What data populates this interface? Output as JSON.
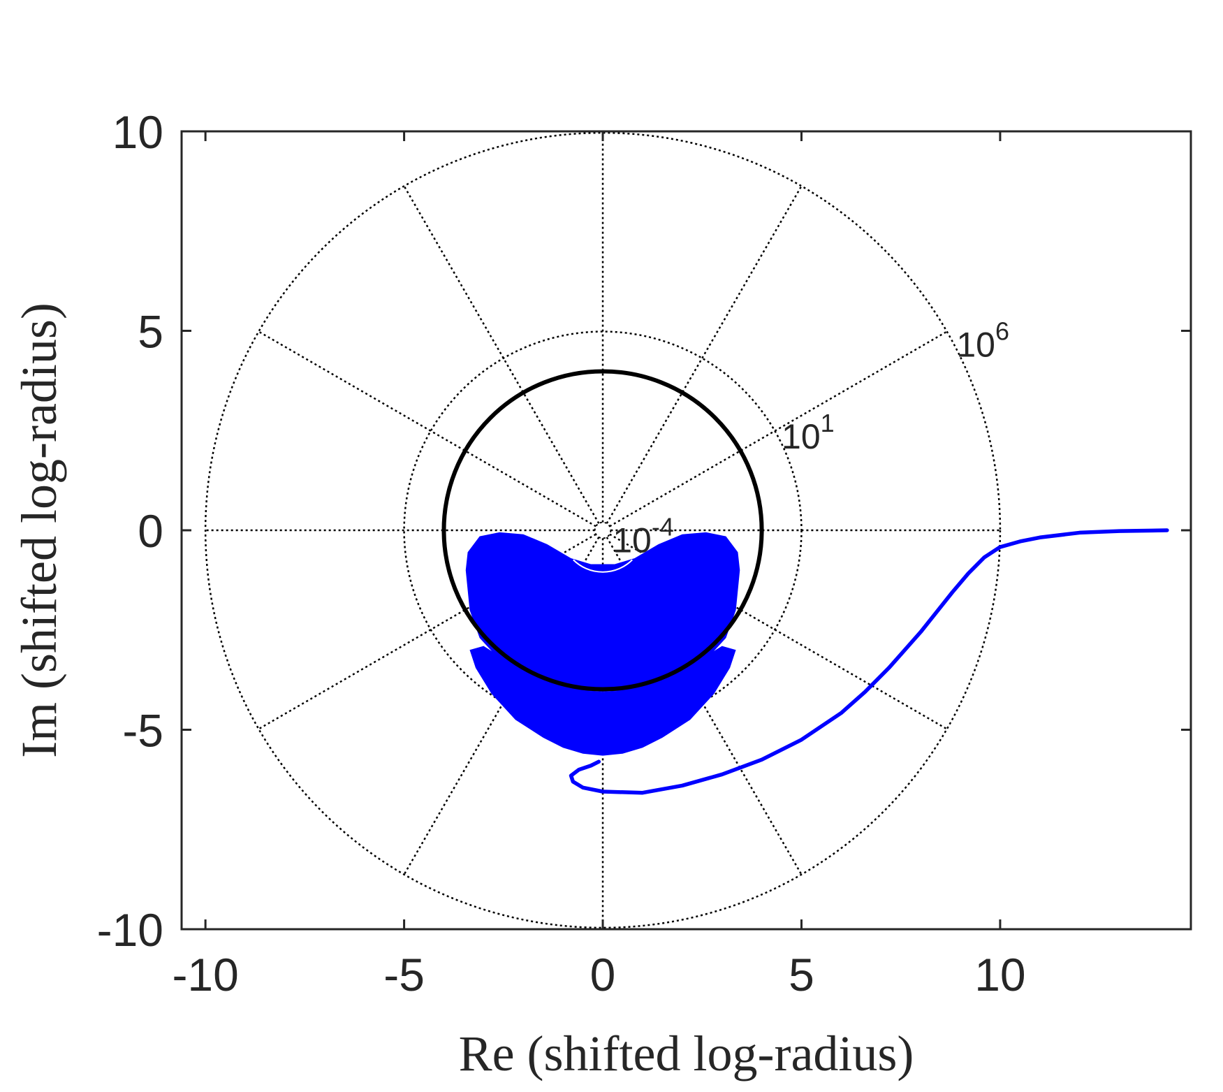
{
  "chart_data": {
    "type": "line",
    "xlabel": "Re (shifted log-radius)",
    "ylabel": "Im (shifted log-radius)",
    "xlim": [
      -10.6,
      14.8
    ],
    "ylim": [
      -10,
      10
    ],
    "xticks": [
      "-10",
      "-5",
      "0",
      "5",
      "10"
    ],
    "yticks": [
      "10",
      "5",
      "0",
      "-5",
      "-10"
    ],
    "xtick_values": [
      -10,
      -5,
      0,
      5,
      10
    ],
    "ytick_values": [
      10,
      5,
      0,
      -5,
      -10
    ],
    "grid": "polar log-radius grid (dotted)",
    "polar_rings": [
      {
        "radius": 0.2,
        "base": "",
        "exponent": ""
      },
      {
        "radius": 5,
        "base": "10",
        "exponent": "-4"
      },
      {
        "radius": 10,
        "base": "10",
        "exponent": "1"
      },
      {
        "radius": 0,
        "base": "10",
        "exponent": "6"
      }
    ],
    "ring_labels": [
      {
        "base": "10",
        "exponent": "-4",
        "x": 0.25,
        "y": -0.55
      },
      {
        "base": "10",
        "exponent": "1",
        "x": 4.5,
        "y": 2.05
      },
      {
        "base": "10",
        "exponent": "6",
        "x": 8.9,
        "y": 4.35
      }
    ],
    "spoke_angles_deg": [
      0,
      30,
      60,
      90,
      120,
      150,
      180,
      210,
      240,
      270,
      300,
      330
    ],
    "unit_circle": {
      "radius": 4,
      "color": "#000000"
    },
    "series": [
      {
        "color": "#0000ff",
        "x": [
          14.2,
          13,
          12,
          11,
          10.5,
          10,
          9.6,
          9.2,
          8.8,
          8.4,
          8.0,
          7.6,
          7.2,
          6.6,
          6.0,
          5.0,
          4.0,
          3.0,
          2.0,
          1.0,
          0.0,
          -0.5,
          -0.75,
          -0.8,
          -0.6,
          -0.3,
          -0.1
        ],
        "y": [
          0.0,
          -0.02,
          -0.06,
          -0.18,
          -0.28,
          -0.42,
          -0.68,
          -1.08,
          -1.55,
          -2.05,
          -2.55,
          -3.0,
          -3.45,
          -4.05,
          -4.58,
          -5.25,
          -5.75,
          -6.12,
          -6.4,
          -6.58,
          -6.55,
          -6.45,
          -6.3,
          -6.15,
          -6.0,
          -5.9,
          -5.8
        ]
      }
    ],
    "filled_region": {
      "color": "#0000ff",
      "upper_lobe": {
        "x": [
          -3.45,
          -3.4,
          -3.1,
          -2.6,
          -2.0,
          -1.4,
          -0.8,
          -0.3,
          0.0,
          0.3,
          0.8,
          1.4,
          2.0,
          2.6,
          3.1,
          3.4,
          3.45,
          3.35,
          3.1,
          2.5,
          1.8,
          1.0,
          0.0,
          -1.0,
          -1.8,
          -2.5,
          -3.1,
          -3.35
        ],
        "y": [
          -1.0,
          -0.55,
          -0.15,
          -0.05,
          -0.1,
          -0.35,
          -0.7,
          -0.85,
          -0.85,
          -0.85,
          -0.7,
          -0.35,
          -0.1,
          -0.05,
          -0.15,
          -0.55,
          -1.0,
          -2.0,
          -2.7,
          -3.35,
          -3.8,
          -4.0,
          -4.05,
          -4.0,
          -3.8,
          -3.35,
          -2.7,
          -2.0
        ]
      },
      "lower_lobe": {
        "x": [
          -3.35,
          -3.0,
          -2.6,
          -2.0,
          -1.4,
          -0.8,
          0.0,
          0.8,
          1.4,
          2.0,
          2.6,
          3.0,
          3.35,
          3.2,
          2.8,
          2.2,
          1.5,
          1.0,
          0.5,
          0.0,
          -0.5,
          -1.0,
          -1.5,
          -2.2,
          -2.8,
          -3.2
        ],
        "y": [
          -3.0,
          -2.9,
          -3.15,
          -3.6,
          -3.85,
          -4.0,
          -4.05,
          -4.0,
          -3.85,
          -3.6,
          -3.15,
          -2.9,
          -3.0,
          -3.45,
          -4.1,
          -4.75,
          -5.2,
          -5.45,
          -5.6,
          -5.65,
          -5.6,
          -5.45,
          -5.2,
          -4.75,
          -4.1,
          -3.45
        ]
      },
      "inner_arc": {
        "radius": 1.05,
        "from_deg": 225,
        "to_deg": 315
      }
    }
  }
}
